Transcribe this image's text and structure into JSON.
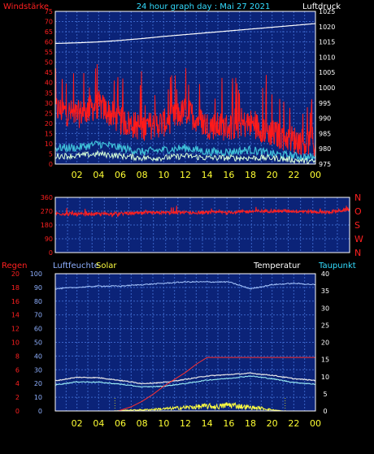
{
  "header": {
    "left_label": "Windstärke",
    "center_label": "24 hour graph day : Mai 27 2021",
    "right_label": "Luftdruck"
  },
  "colors": {
    "background": "#000000",
    "plot_bg": "#0b2378",
    "grid": "#3a64c8",
    "frame": "#ffffff",
    "wind_gust": "#ff1a1a",
    "wind_avg": "#3fc0d8",
    "wind_low": "#ffffff",
    "pressure": "#ffffff",
    "wind_dir": "#ff2020",
    "humidity": "#a8c8ff",
    "temperature": "#e8e8e8",
    "dewpoint": "#a8ffff",
    "solar": "#ffff40",
    "rain": "#ff3030",
    "hour_labels": "#ffff33",
    "red_labels": "#ff2020",
    "cyan_labels": "#33ddff",
    "blue_labels": "#8fb0ff"
  },
  "chart_data": [
    {
      "type": "line",
      "panel": "wind-pressure",
      "x_ticks": [
        "02",
        "04",
        "06",
        "08",
        "10",
        "12",
        "14",
        "16",
        "18",
        "20",
        "22",
        "00"
      ],
      "y_left": {
        "label": "Windstärke",
        "ticks": [
          "0",
          "5",
          "10",
          "15",
          "20",
          "25",
          "30",
          "35",
          "40",
          "45",
          "50",
          "55",
          "60",
          "65",
          "70",
          "75"
        ],
        "ylim": [
          0,
          75
        ]
      },
      "y_right": {
        "label": "Luftdruck",
        "ticks": [
          "975",
          "980",
          "985",
          "990",
          "995",
          "1000",
          "1005",
          "1010",
          "1015",
          "1020",
          "1025"
        ],
        "ylim": [
          975,
          1025
        ]
      },
      "series": [
        {
          "axis": "right",
          "x": [
            0,
            2,
            4,
            6,
            8,
            10,
            12,
            14,
            16,
            18,
            20,
            22,
            24
          ],
          "values": [
            1014.5,
            1014.7,
            1015.0,
            1015.5,
            1016.1,
            1016.8,
            1017.4,
            1018.0,
            1018.6,
            1019.2,
            1019.8,
            1020.4,
            1021.0
          ]
        },
        {
          "axis": "left",
          "x": [
            0,
            2,
            4,
            6,
            8,
            10,
            12,
            14,
            16,
            18,
            20,
            22,
            24
          ],
          "values": [
            25,
            22,
            27,
            19,
            16,
            18,
            24,
            17,
            16,
            18,
            13,
            10,
            7
          ]
        },
        {
          "axis": "left",
          "x": [
            0,
            2,
            4,
            6,
            8,
            10,
            12,
            14,
            16,
            18,
            20,
            22,
            24
          ],
          "values": [
            8,
            8,
            10,
            8,
            6,
            7,
            8,
            6,
            6,
            7,
            5,
            4,
            3
          ]
        },
        {
          "axis": "left",
          "x": [
            0,
            2,
            4,
            6,
            8,
            10,
            12,
            14,
            16,
            18,
            20,
            22,
            24
          ],
          "values": [
            4,
            4,
            5,
            4,
            3,
            3,
            4,
            3,
            3,
            3,
            3,
            2,
            1
          ]
        }
      ]
    },
    {
      "type": "line",
      "panel": "wind-direction",
      "x_ticks": [
        "02",
        "04",
        "06",
        "08",
        "10",
        "12",
        "14",
        "16",
        "18",
        "20",
        "22",
        "00"
      ],
      "y_left": {
        "ticks": [
          "0",
          "90",
          "180",
          "270",
          "360"
        ],
        "ylim": [
          0,
          360
        ]
      },
      "y_right": {
        "ticks": [
          "N",
          "W",
          "S",
          "O",
          "N"
        ]
      },
      "series": [
        {
          "x": [
            0,
            2,
            4,
            6,
            8,
            10,
            12,
            14,
            16,
            18,
            20,
            22,
            24
          ],
          "values": [
            255,
            250,
            252,
            255,
            258,
            262,
            260,
            262,
            268,
            272,
            270,
            262,
            280
          ]
        }
      ]
    },
    {
      "type": "line",
      "panel": "climate",
      "labels": {
        "rain": "Regen",
        "humidity": "Luftfeuchte",
        "solar": "Solar",
        "temperature": "Temperatur",
        "dewpoint": "Taupunkt"
      },
      "x_ticks": [
        "02",
        "04",
        "06",
        "08",
        "10",
        "12",
        "14",
        "16",
        "18",
        "20",
        "22",
        "00"
      ],
      "y_left_outer": {
        "ticks": [
          "0",
          "2",
          "4",
          "6",
          "8",
          "10",
          "12",
          "14",
          "16",
          "18",
          "20"
        ],
        "ylim": [
          0,
          20
        ]
      },
      "y_left_inner": {
        "ticks": [
          "0",
          "10",
          "20",
          "30",
          "40",
          "50",
          "60",
          "70",
          "80",
          "90",
          "100"
        ],
        "ylim": [
          0,
          100
        ]
      },
      "y_right": {
        "ticks": [
          "0",
          "5",
          "10",
          "15",
          "20",
          "25",
          "30",
          "35",
          "40"
        ],
        "ylim": [
          0,
          40
        ]
      },
      "series": [
        {
          "name": "Luftfeuchte",
          "axis": "inner",
          "x": [
            0,
            2,
            4,
            6,
            8,
            10,
            12,
            14,
            16,
            18,
            20,
            22,
            24
          ],
          "values": [
            89,
            90,
            91,
            91,
            92,
            93,
            94,
            94,
            94,
            89,
            92,
            93,
            92
          ]
        },
        {
          "name": "Temperatur",
          "axis": "right",
          "x": [
            0,
            2,
            4,
            6,
            8,
            10,
            12,
            14,
            16,
            18,
            20,
            22,
            24
          ],
          "values": [
            8.8,
            9.8,
            9.7,
            8.9,
            8.0,
            8.3,
            9.2,
            10.2,
            10.6,
            11.0,
            10.4,
            9.4,
            8.9
          ]
        },
        {
          "name": "Taupunkt",
          "axis": "right",
          "x": [
            0,
            2,
            4,
            6,
            8,
            10,
            12,
            14,
            16,
            18,
            20,
            22,
            24
          ],
          "values": [
            7.6,
            8.5,
            8.4,
            7.8,
            7.0,
            7.2,
            8.0,
            9.0,
            9.5,
            10.2,
            9.4,
            8.3,
            7.8
          ]
        },
        {
          "name": "Solar",
          "axis": "inner",
          "x": [
            0,
            5.5,
            6.5,
            8,
            10,
            12,
            13,
            14,
            15,
            16,
            17,
            18,
            19,
            20,
            21,
            24
          ],
          "values": [
            0,
            0,
            0.5,
            0.8,
            1.5,
            2.5,
            3.0,
            3.5,
            3.0,
            4.5,
            3.5,
            2.5,
            2.0,
            0.8,
            0,
            0
          ]
        },
        {
          "name": "Regen",
          "axis": "outer",
          "x": [
            0,
            5.8,
            7,
            8,
            9,
            10,
            11,
            12,
            13,
            14,
            24
          ],
          "values": [
            0,
            0,
            0.6,
            1.4,
            2.4,
            3.6,
            4.6,
            5.6,
            6.8,
            7.8,
            7.8
          ]
        }
      ]
    }
  ]
}
